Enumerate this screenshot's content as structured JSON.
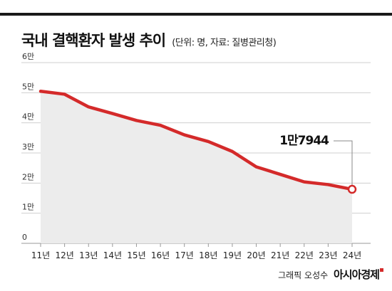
{
  "header": {
    "title": "국내 결핵환자 발생 추이",
    "subtitle": "(단위: 명, 자료: 질병관리청)"
  },
  "chart_data": {
    "type": "area",
    "title": "국내 결핵환자 발생 추이",
    "subtitle": "(단위: 명, 자료: 질병관리청)",
    "xlabel": "",
    "ylabel": "",
    "categories": [
      "11년",
      "12년",
      "13년",
      "14년",
      "15년",
      "16년",
      "17년",
      "18년",
      "19년",
      "20년",
      "21년",
      "22년",
      "23년",
      "24년"
    ],
    "values": [
      50500,
      49500,
      45300,
      43100,
      40800,
      39200,
      36000,
      33800,
      30500,
      25400,
      22900,
      20400,
      19500,
      17944
    ],
    "ylim": [
      0,
      60000
    ],
    "yticks": [
      0,
      10000,
      20000,
      30000,
      40000,
      50000,
      60000
    ],
    "ytick_labels": [
      "0",
      "1만",
      "2만",
      "3만",
      "4만",
      "5만",
      "6만"
    ],
    "grid": true,
    "legend": "none",
    "annotation": {
      "index": 13,
      "label": "1만7944"
    },
    "colors": {
      "line": "#d42a2a",
      "fill": "#ececec",
      "grid": "#cfcfcf",
      "axis": "#999999"
    }
  },
  "footer": {
    "credit": "그래픽 오성수",
    "brand": "아시아경제"
  }
}
